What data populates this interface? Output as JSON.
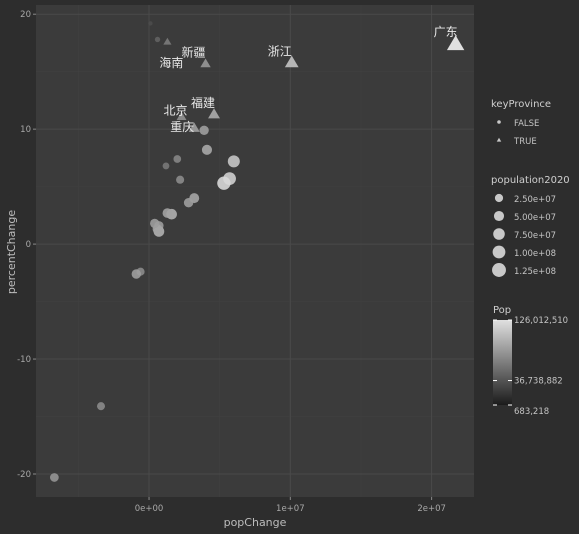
{
  "chart_data": {
    "type": "scatter",
    "xlabel": "popChange",
    "ylabel": "percentChange",
    "xlim": [
      -8000000,
      23000000
    ],
    "ylim": [
      -22,
      20.8
    ],
    "x_ticks": [
      0,
      10000000,
      20000000
    ],
    "x_tick_labels": [
      "0e+00",
      "1e+07",
      "2e+07"
    ],
    "y_ticks": [
      -20,
      -10,
      0,
      10,
      20
    ],
    "y_tick_labels": [
      "-20",
      "-10",
      "0",
      "10",
      "20"
    ],
    "grid": true,
    "points": [
      {
        "x": 21700000,
        "y": 17.4,
        "pop": 126012510,
        "key": true,
        "label": "广东"
      },
      {
        "x": 10100000,
        "y": 15.8,
        "pop": 64567588,
        "key": true,
        "label": "浙江"
      },
      {
        "x": 4000000,
        "y": 15.7,
        "pop": 25852345,
        "key": true,
        "label": "新疆"
      },
      {
        "x": 1300000,
        "y": 17.6,
        "pop": 10081232,
        "key": true,
        "label": "海南"
      },
      {
        "x": 4600000,
        "y": 11.3,
        "pop": 41540086,
        "key": true,
        "label": "福建"
      },
      {
        "x": 2300000,
        "y": 11.1,
        "pop": 21893095,
        "key": true,
        "label": "北京"
      },
      {
        "x": 3200000,
        "y": 10.1,
        "pop": 32054159,
        "key": true,
        "label": "重庆"
      },
      {
        "x": 600000,
        "y": 17.8,
        "pop": 3648100,
        "key": false
      },
      {
        "x": 100000,
        "y": 19.2,
        "pop": 683218,
        "key": false
      },
      {
        "x": 3900000,
        "y": 9.9,
        "pop": 39000000,
        "key": false
      },
      {
        "x": 4100000,
        "y": 8.2,
        "pop": 50000000,
        "key": false
      },
      {
        "x": 1200000,
        "y": 6.8,
        "pop": 12000000,
        "key": false
      },
      {
        "x": 2000000,
        "y": 7.4,
        "pop": 20000000,
        "key": false
      },
      {
        "x": 6000000,
        "y": 7.2,
        "pop": 84000000,
        "key": false
      },
      {
        "x": 2200000,
        "y": 5.6,
        "pop": 24000000,
        "key": false
      },
      {
        "x": 5700000,
        "y": 5.7,
        "pop": 99000000,
        "key": false
      },
      {
        "x": 5300000,
        "y": 5.3,
        "pop": 113000000,
        "key": false
      },
      {
        "x": 3200000,
        "y": 4.0,
        "pop": 47000000,
        "key": false
      },
      {
        "x": 2800000,
        "y": 3.6,
        "pop": 40000000,
        "key": false
      },
      {
        "x": 1600000,
        "y": 2.6,
        "pop": 58000000,
        "key": false
      },
      {
        "x": 1300000,
        "y": 2.7,
        "pop": 44000000,
        "key": false
      },
      {
        "x": 700000,
        "y": 1.6,
        "pop": 38000000,
        "key": false
      },
      {
        "x": 700000,
        "y": 1.1,
        "pop": 59000000,
        "key": false
      },
      {
        "x": 600000,
        "y": 1.3,
        "pop": 45000000,
        "key": false
      },
      {
        "x": 400000,
        "y": 1.8,
        "pop": 38000000,
        "key": false
      },
      {
        "x": -600000,
        "y": -2.4,
        "pop": 24000000,
        "key": false
      },
      {
        "x": -900000,
        "y": -2.6,
        "pop": 40000000,
        "key": false
      },
      {
        "x": -3400000,
        "y": -14.1,
        "pop": 23000000,
        "key": false
      },
      {
        "x": -6700000,
        "y": -20.3,
        "pop": 31000000,
        "key": false
      }
    ],
    "legend": {
      "placement": "right",
      "shape": {
        "title": "keyProvince",
        "entries": [
          "FALSE",
          "TRUE"
        ]
      },
      "size": {
        "title": "population2020",
        "entries": [
          "2.50e+07",
          "5.00e+07",
          "7.50e+07",
          "1.00e+08",
          "1.25e+08"
        ],
        "values": [
          25000000,
          50000000,
          75000000,
          100000000,
          125000000
        ]
      },
      "color": {
        "title": "Pop",
        "labels": [
          "126,012,510",
          "36,738,882",
          "683,218"
        ],
        "values": [
          126012510,
          36738882,
          683218
        ],
        "low": "#1b1b1b",
        "high": "#e0e0e0"
      }
    }
  },
  "colors": {
    "background": "#2d2d2d",
    "panel": "#3b3b3b",
    "grid_major": "#4a4a4a",
    "grid_minor": "#414141"
  }
}
